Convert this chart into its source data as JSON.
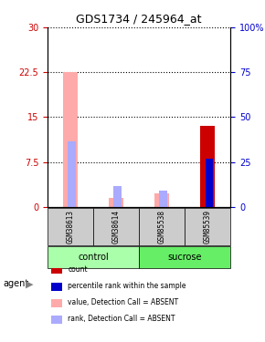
{
  "title": "GDS1734 / 245964_at",
  "samples": [
    "GSM38613",
    "GSM38614",
    "GSM85538",
    "GSM85539"
  ],
  "groups": [
    {
      "name": "control",
      "samples": [
        "GSM38613",
        "GSM38614"
      ],
      "color": "#aaffaa"
    },
    {
      "name": "sucrose",
      "samples": [
        "GSM85538",
        "GSM85539"
      ],
      "color": "#66ee66"
    }
  ],
  "ylim_left": [
    0,
    30
  ],
  "ylim_right": [
    0,
    100
  ],
  "yticks_left": [
    0,
    7.5,
    15,
    22.5,
    30
  ],
  "yticks_right": [
    0,
    25,
    50,
    75,
    100
  ],
  "ytick_labels_left": [
    "0",
    "7.5",
    "15",
    "22.5",
    "30"
  ],
  "ytick_labels_right": [
    "0",
    "25",
    "50",
    "75",
    "100%"
  ],
  "left_axis_color": "#cc0000",
  "right_axis_color": "#0000cc",
  "bar_positions": [
    0,
    1,
    2,
    3
  ],
  "count_values": [
    0,
    0,
    0,
    13.5
  ],
  "rank_values": [
    0,
    0,
    0,
    8.0
  ],
  "absent_value_values": [
    22.5,
    1.5,
    2.2,
    0
  ],
  "absent_rank_values": [
    11.0,
    3.5,
    2.8,
    0
  ],
  "count_color": "#cc0000",
  "rank_color": "#0000cc",
  "absent_value_color": "#ffaaaa",
  "absent_rank_color": "#aaaaff",
  "bar_width": 0.35,
  "grid_color": "#000000",
  "grid_linestyle": "dotted",
  "agent_label": "agent",
  "legend_items": [
    {
      "label": "count",
      "color": "#cc0000"
    },
    {
      "label": "percentile rank within the sample",
      "color": "#0000cc"
    },
    {
      "label": "value, Detection Call = ABSENT",
      "color": "#ffaaaa"
    },
    {
      "label": "rank, Detection Call = ABSENT",
      "color": "#aaaaff"
    }
  ]
}
